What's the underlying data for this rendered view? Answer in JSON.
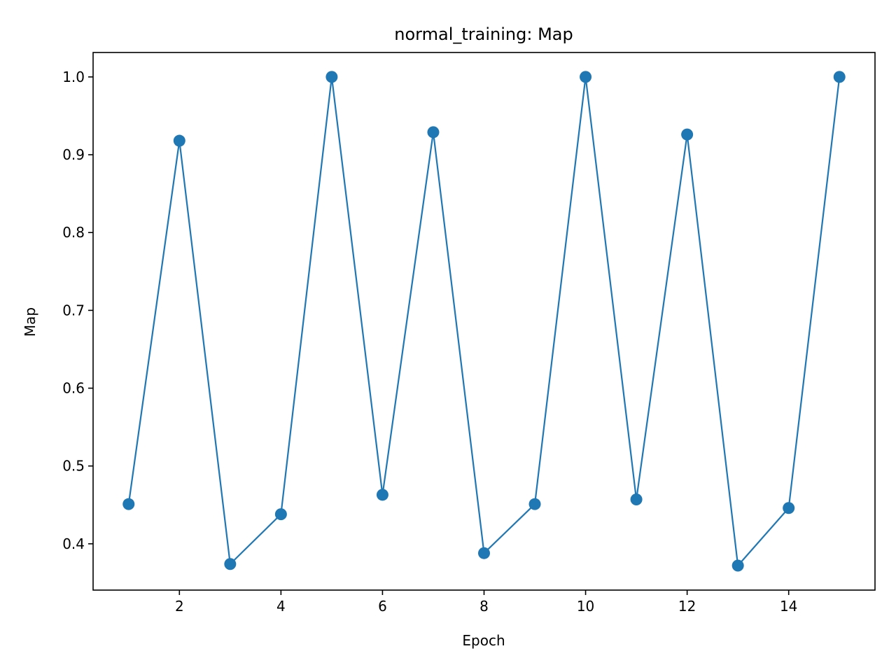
{
  "chart_data": {
    "type": "line",
    "title": "normal_training: Map",
    "xlabel": "Epoch",
    "ylabel": "Map",
    "x": [
      1,
      2,
      3,
      4,
      5,
      6,
      7,
      8,
      9,
      10,
      11,
      12,
      13,
      14,
      15
    ],
    "series": [
      {
        "values": [
          0.451,
          0.918,
          0.374,
          0.438,
          1.0,
          0.463,
          0.929,
          0.388,
          0.451,
          1.0,
          0.457,
          0.926,
          0.372,
          0.446,
          1.0
        ],
        "color": "#1f77b4",
        "marker": "circle"
      }
    ],
    "xlim": [
      0.3,
      15.7
    ],
    "ylim": [
      0.3405,
      1.0314
    ],
    "xticks": [
      2,
      4,
      6,
      8,
      10,
      12,
      14
    ],
    "yticks": [
      0.4,
      0.5,
      0.6,
      0.7,
      0.8,
      0.9,
      1.0
    ],
    "ytick_labels": [
      "0.4",
      "0.5",
      "0.6",
      "0.7",
      "0.8",
      "0.9",
      "1.0"
    ],
    "grid": false,
    "legend": "none"
  }
}
